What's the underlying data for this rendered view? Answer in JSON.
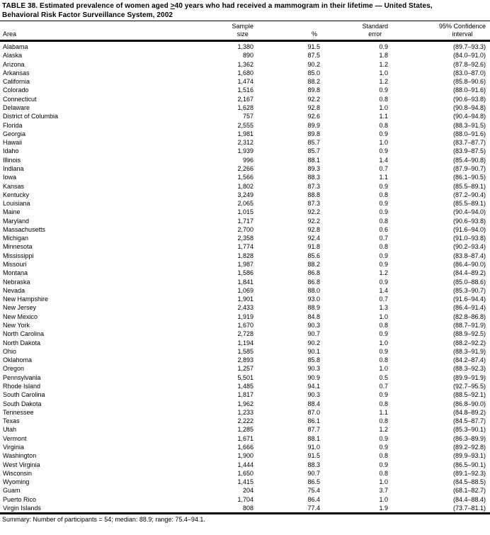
{
  "title": {
    "line1_prefix": "TABLE 38. Estimated prevalence of women aged ",
    "line1_gte": ">",
    "line1_suffix": "40 years who had received a mammogram in their lifetime — United States,",
    "line2": "Behavioral Risk Factor Surveillance System, 2002"
  },
  "table": {
    "columns": {
      "area": "Area",
      "sample_size": [
        "Sample",
        "size"
      ],
      "percent": "%",
      "standard_error": [
        "Standard",
        "error"
      ],
      "confidence_interval": [
        "95% Confidence",
        "interval"
      ]
    },
    "rows": [
      [
        "Alabama",
        "1,380",
        "91.5",
        "0.9",
        "(89.7–93.3)"
      ],
      [
        "Alaska",
        "890",
        "87.5",
        "1.8",
        "(84.0–91.0)"
      ],
      [
        "Arizona",
        "1,362",
        "90.2",
        "1.2",
        "(87.8–92.6)"
      ],
      [
        "Arkansas",
        "1,680",
        "85.0",
        "1.0",
        "(83.0–87.0)"
      ],
      [
        "California",
        "1,474",
        "88.2",
        "1.2",
        "(85.8–90.6)"
      ],
      [
        "Colorado",
        "1,516",
        "89.8",
        "0.9",
        "(88.0–91.6)"
      ],
      [
        "Connecticut",
        "2,167",
        "92.2",
        "0.8",
        "(90.6–93.8)"
      ],
      [
        "Delaware",
        "1,628",
        "92.8",
        "1.0",
        "(90.8–94.8)"
      ],
      [
        "District of Columbia",
        "757",
        "92.6",
        "1.1",
        "(90.4–94.8)"
      ],
      [
        "Florida",
        "2,555",
        "89.9",
        "0.8",
        "(88.3–91.5)"
      ],
      [
        "Georgia",
        "1,981",
        "89.8",
        "0.9",
        "(88.0–91.6)"
      ],
      [
        "Hawaii",
        "2,312",
        "85.7",
        "1.0",
        "(83.7–87.7)"
      ],
      [
        "Idaho",
        "1,939",
        "85.7",
        "0.9",
        "(83.9–87.5)"
      ],
      [
        "Illinois",
        "996",
        "88.1",
        "1.4",
        "(85.4–90.8)"
      ],
      [
        "Indiana",
        "2,266",
        "89.3",
        "0.7",
        "(87.9–90.7)"
      ],
      [
        "Iowa",
        "1,566",
        "88.3",
        "1.1",
        "(86.1–90.5)"
      ],
      [
        "Kansas",
        "1,802",
        "87.3",
        "0.9",
        "(85.5–89.1)"
      ],
      [
        "Kentucky",
        "3,249",
        "88.8",
        "0.8",
        "(87.2–90.4)"
      ],
      [
        "Louisiana",
        "2,065",
        "87.3",
        "0.9",
        "(85.5–89.1)"
      ],
      [
        "Maine",
        "1,015",
        "92.2",
        "0.9",
        "(90.4–94.0)"
      ],
      [
        "Maryland",
        "1,717",
        "92.2",
        "0.8",
        "(90.6–93.8)"
      ],
      [
        "Massachusetts",
        "2,700",
        "92.8",
        "0.6",
        "(91.6–94.0)"
      ],
      [
        "Michigan",
        "2,358",
        "92.4",
        "0.7",
        "(91.0–93.8)"
      ],
      [
        "Minnesota",
        "1,774",
        "91.8",
        "0.8",
        "(90.2–93.4)"
      ],
      [
        "Mississippi",
        "1,828",
        "85.6",
        "0.9",
        "(83.8–87.4)"
      ],
      [
        "Missouri",
        "1,987",
        "88.2",
        "0.9",
        "(86.4–90.0)"
      ],
      [
        "Montana",
        "1,586",
        "86.8",
        "1.2",
        "(84.4–89.2)"
      ],
      [
        "Nebraska",
        "1,841",
        "86.8",
        "0.9",
        "(85.0–88.6)"
      ],
      [
        "Nevada",
        "1,069",
        "88.0",
        "1.4",
        "(85.3–90.7)"
      ],
      [
        "New Hampshire",
        "1,901",
        "93.0",
        "0.7",
        "(91.6–94.4)"
      ],
      [
        "New Jersey",
        "2,433",
        "88.9",
        "1.3",
        "(86.4–91.4)"
      ],
      [
        "New Mexico",
        "1,919",
        "84.8",
        "1.0",
        "(82.8–86.8)"
      ],
      [
        "New York",
        "1,670",
        "90.3",
        "0.8",
        "(88.7–91.9)"
      ],
      [
        "North Carolina",
        "2,728",
        "90.7",
        "0.9",
        "(88.9–92.5)"
      ],
      [
        "North Dakota",
        "1,194",
        "90.2",
        "1.0",
        "(88.2–92.2)"
      ],
      [
        "Ohio",
        "1,585",
        "90.1",
        "0.9",
        "(88.3–91.9)"
      ],
      [
        "Oklahoma",
        "2,893",
        "85.8",
        "0.8",
        "(84.2–87.4)"
      ],
      [
        "Oregon",
        "1,257",
        "90.3",
        "1.0",
        "(88.3–92.3)"
      ],
      [
        "Pennsylvania",
        "5,501",
        "90.9",
        "0.5",
        "(89.9–91.9)"
      ],
      [
        "Rhode Island",
        "1,485",
        "94.1",
        "0.7",
        "(92.7–95.5)"
      ],
      [
        "South Carolina",
        "1,817",
        "90.3",
        "0.9",
        "(88.5–92.1)"
      ],
      [
        "South Dakota",
        "1,962",
        "88.4",
        "0.8",
        "(86.8–90.0)"
      ],
      [
        "Tennessee",
        "1,233",
        "87.0",
        "1.1",
        "(84.8–89.2)"
      ],
      [
        "Texas",
        "2,222",
        "86.1",
        "0.8",
        "(84.5–87.7)"
      ],
      [
        "Utah",
        "1,285",
        "87.7",
        "1.2",
        "(85.3–90.1)"
      ],
      [
        "Vermont",
        "1,671",
        "88.1",
        "0.9",
        "(86.3–89.9)"
      ],
      [
        "Virginia",
        "1,666",
        "91.0",
        "0.9",
        "(89.2–92.8)"
      ],
      [
        "Washington",
        "1,900",
        "91.5",
        "0.8",
        "(89.9–93.1)"
      ],
      [
        "West Virginia",
        "1,444",
        "88.3",
        "0.9",
        "(86.5–90.1)"
      ],
      [
        "Wisconsin",
        "1,650",
        "90.7",
        "0.8",
        "(89.1–92.3)"
      ],
      [
        "Wyoming",
        "1,415",
        "86.5",
        "1.0",
        "(84.5–88.5)"
      ],
      [
        "Guam",
        "204",
        "75.4",
        "3.7",
        "(68.1–82.7)"
      ],
      [
        "Puerto Rico",
        "1,704",
        "86.4",
        "1.0",
        "(84.4–88.4)"
      ],
      [
        "Virgin Islands",
        "808",
        "77.4",
        "1.9",
        "(73.7–81.1)"
      ]
    ]
  },
  "summary": "Summary: Number of participants = 54; median: 88.9; range: 75.4–94.1."
}
